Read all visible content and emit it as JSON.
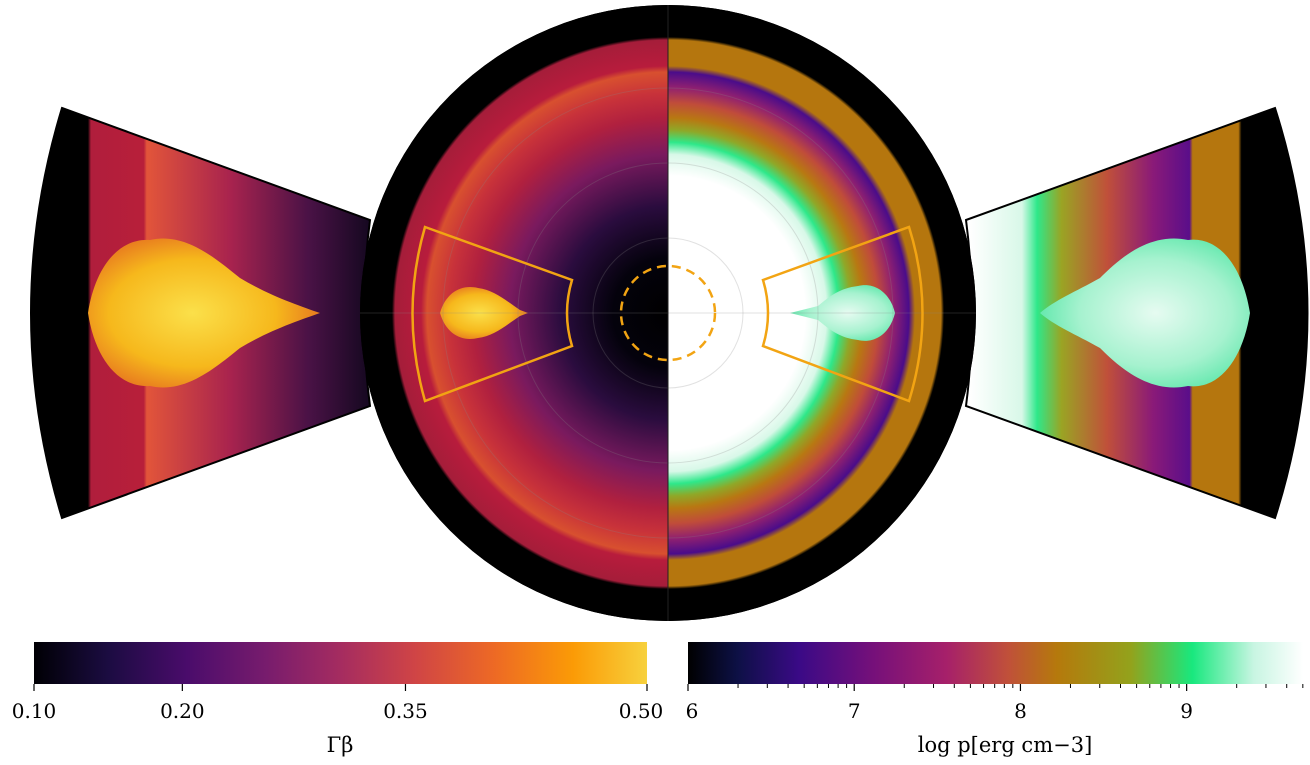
{
  "chart_data": [
    {
      "type": "heatmap",
      "panel": "left half: Lorentz-factor velocity",
      "colormap": "inferno",
      "colorbar": {
        "label": "Γβ",
        "range": [
          0.1,
          0.5
        ],
        "ticks": [
          0.1,
          0.2,
          0.35,
          0.5
        ],
        "tick_labels": [
          "0.10",
          "0.20",
          "0.35",
          "0.50"
        ],
        "scale": "nonlinear",
        "colors": [
          "#000004",
          "#1b0c41",
          "#4a0c6b",
          "#781c6d",
          "#a52c60",
          "#cf4446",
          "#ed6925",
          "#fb9b06",
          "#f7d13d"
        ]
      }
    },
    {
      "type": "heatmap",
      "panel": "right half: gas pressure",
      "colormap": "custom (black-purple-magenta-orange-olive-green-white)",
      "colorbar": {
        "label": "log p[erg cm−3]",
        "range": [
          6,
          9.7
        ],
        "ticks": [
          6,
          7,
          8,
          9
        ],
        "tick_labels": [
          "6",
          "7",
          "8",
          "9"
        ],
        "minor_ticks": "logarithmic within each decade",
        "colors": [
          "#000000",
          "#0d1045",
          "#3a0a86",
          "#75107a",
          "#a6206a",
          "#c0503a",
          "#b5790c",
          "#93a21c",
          "#18e87e",
          "#c8f5e2",
          "#ffffff"
        ]
      }
    }
  ],
  "colors": {
    "zoom_box": "#f2a413",
    "outer_shell": "#000000",
    "background": "#ffffff"
  }
}
